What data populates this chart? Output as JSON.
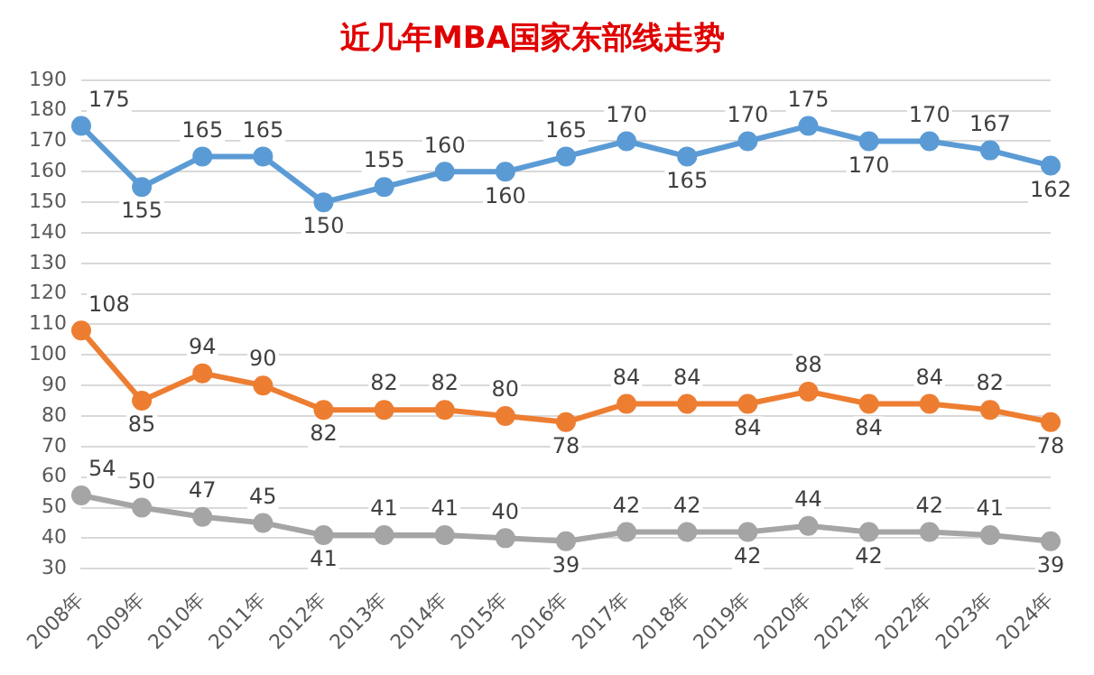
{
  "chart_data": {
    "type": "line",
    "title": "近几年MBA国家东部线走势",
    "categories": [
      "2008年",
      "2009年",
      "2010年",
      "2011年",
      "2012年",
      "2013年",
      "2014年",
      "2015年",
      "2016年",
      "2017年",
      "2018年",
      "2019年",
      "2020年",
      "2021年",
      "2022年",
      "2023年",
      "2024年"
    ],
    "series": [
      {
        "color": "#5b9bd5",
        "values": [
          175,
          155,
          165,
          165,
          150,
          155,
          160,
          160,
          165,
          170,
          165,
          170,
          175,
          170,
          170,
          167,
          162
        ]
      },
      {
        "color": "#ed7d31",
        "values": [
          108,
          85,
          94,
          90,
          82,
          82,
          82,
          80,
          78,
          84,
          84,
          84,
          88,
          84,
          84,
          82,
          78
        ]
      },
      {
        "color": "#a5a5a5",
        "values": [
          54,
          50,
          47,
          45,
          41,
          41,
          41,
          40,
          39,
          42,
          42,
          42,
          44,
          42,
          42,
          41,
          39
        ]
      }
    ],
    "ylim": [
      30,
      190
    ],
    "yticks": [
      30,
      40,
      50,
      60,
      70,
      80,
      90,
      100,
      110,
      120,
      130,
      140,
      150,
      160,
      170,
      180,
      190
    ],
    "grid": "y",
    "legend": false,
    "marker": "circle",
    "line_style": "solid",
    "data_labels": true
  }
}
